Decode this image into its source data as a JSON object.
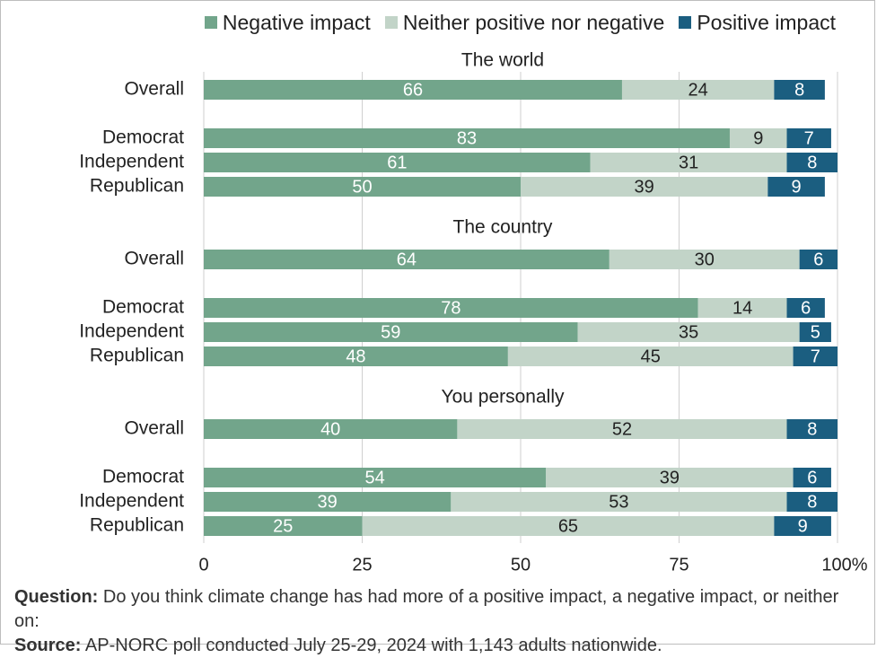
{
  "colors": {
    "negative": "#72a58b",
    "neither": "#c2d4c8",
    "positive": "#1b5e80",
    "gridline": "#cfcfcf",
    "text": "#222222",
    "label_on_negative": "#ffffff",
    "label_on_neither": "#222222",
    "label_on_positive": "#ffffff"
  },
  "chart_data": {
    "type": "bar",
    "orientation": "horizontal",
    "stacked": true,
    "legend_position": "top-right",
    "grid": true,
    "xlim": [
      0,
      100
    ],
    "x_ticks": [
      "0",
      "25",
      "50",
      "75",
      "100%"
    ],
    "series": [
      {
        "key": "negative",
        "name": "Negative impact"
      },
      {
        "key": "neither",
        "name": "Neither positive nor negative"
      },
      {
        "key": "positive",
        "name": "Positive impact"
      }
    ],
    "panels": [
      {
        "title": "The world",
        "rows": [
          {
            "label": "Overall",
            "values": [
              66,
              24,
              8
            ]
          },
          {
            "label": "Democrat",
            "values": [
              83,
              9,
              7
            ]
          },
          {
            "label": "Independent",
            "values": [
              61,
              31,
              8
            ]
          },
          {
            "label": "Republican",
            "values": [
              50,
              39,
              9
            ]
          }
        ]
      },
      {
        "title": "The country",
        "rows": [
          {
            "label": "Overall",
            "values": [
              64,
              30,
              6
            ]
          },
          {
            "label": "Democrat",
            "values": [
              78,
              14,
              6
            ]
          },
          {
            "label": "Independent",
            "values": [
              59,
              35,
              5
            ]
          },
          {
            "label": "Republican",
            "values": [
              48,
              45,
              7
            ]
          }
        ]
      },
      {
        "title": "You personally",
        "rows": [
          {
            "label": "Overall",
            "values": [
              40,
              52,
              8
            ]
          },
          {
            "label": "Democrat",
            "values": [
              54,
              39,
              6
            ]
          },
          {
            "label": "Independent",
            "values": [
              39,
              53,
              8
            ]
          },
          {
            "label": "Republican",
            "values": [
              25,
              65,
              9
            ]
          }
        ]
      }
    ]
  },
  "notes": {
    "question_label": "Question:",
    "question_text": "Do you think climate change has had more of a positive impact, a negative impact, or neither on:",
    "source_label": "Source:",
    "source_text": "AP-NORC poll conducted July 25-29, 2024 with 1,143 adults nationwide."
  }
}
